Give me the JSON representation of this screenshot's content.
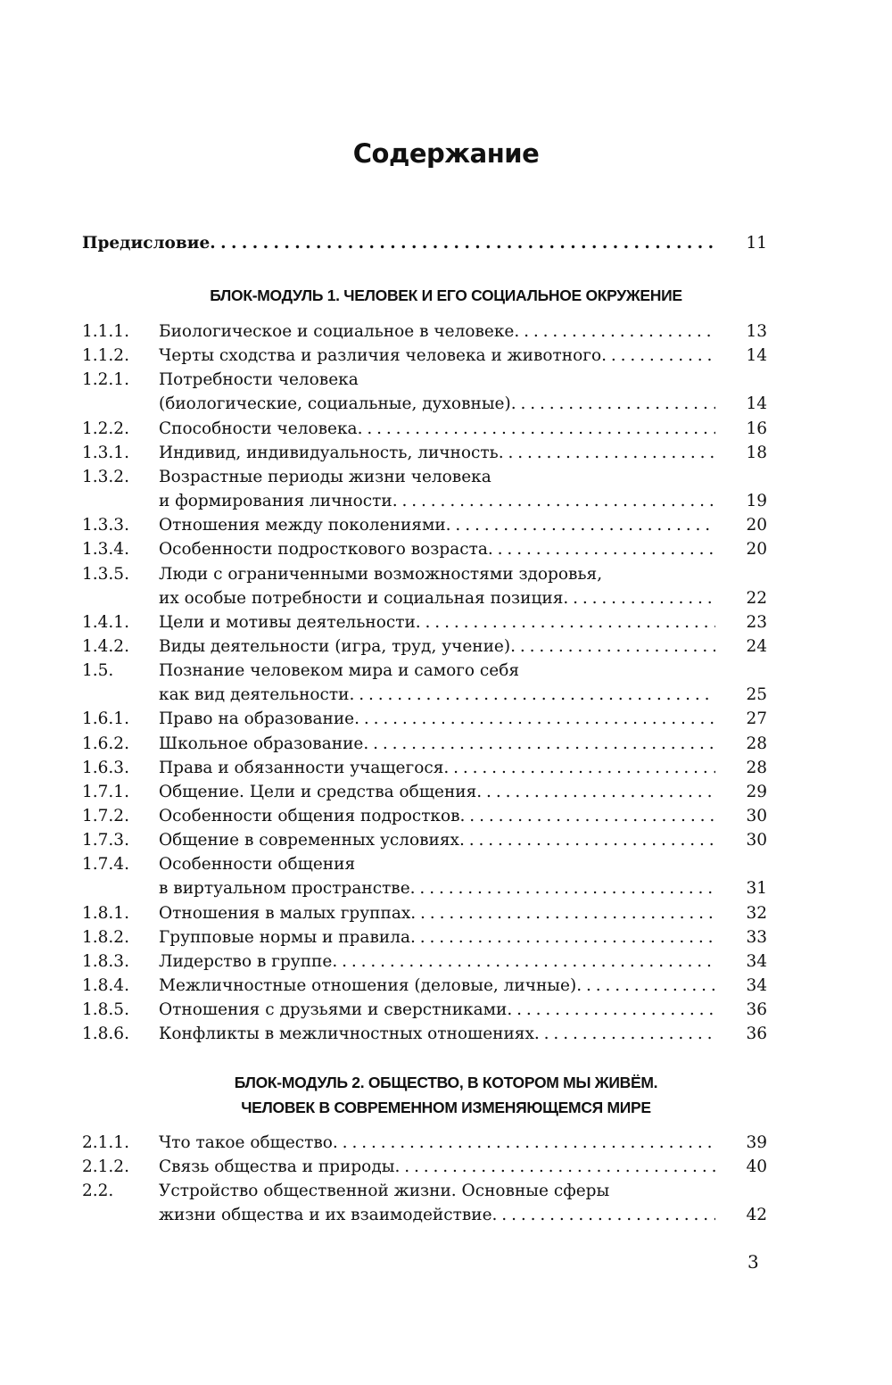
{
  "title": "Содержание",
  "preface": {
    "label": "Предисловие",
    "page": "11"
  },
  "blocks": [
    {
      "heading": [
        "БЛОК-МОДУЛЬ 1. ЧЕЛОВЕК И ЕГО СОЦИАЛЬНОЕ ОКРУЖЕНИЕ"
      ],
      "entries": [
        {
          "num": "1.1.1.",
          "lines": [
            "Биологическое и социальное в человеке"
          ],
          "page": "13"
        },
        {
          "num": "1.1.2.",
          "lines": [
            "Черты сходства и различия человека и животного"
          ],
          "page": "14"
        },
        {
          "num": "1.2.1.",
          "lines": [
            "Потребности человека",
            "(биологические, социальные, духовные)"
          ],
          "page": "14"
        },
        {
          "num": "1.2.2.",
          "lines": [
            "Способности человека"
          ],
          "page": "16"
        },
        {
          "num": "1.3.1.",
          "lines": [
            "Индивид, индивидуальность, личность"
          ],
          "page": "18"
        },
        {
          "num": "1.3.2.",
          "lines": [
            "Возрастные периоды жизни человека",
            "и формирования личности"
          ],
          "page": "19"
        },
        {
          "num": "1.3.3.",
          "lines": [
            "Отношения между поколениями"
          ],
          "page": "20"
        },
        {
          "num": "1.3.4.",
          "lines": [
            "Особенности подросткового возраста"
          ],
          "page": "20"
        },
        {
          "num": "1.3.5.",
          "lines": [
            "Люди с ограниченными возможностями здоровья,",
            "их особые потребности и социальная позиция"
          ],
          "page": "22"
        },
        {
          "num": "1.4.1.",
          "lines": [
            "Цели и мотивы деятельности"
          ],
          "page": "23"
        },
        {
          "num": "1.4.2.",
          "lines": [
            "Виды деятельности (игра, труд, учение)"
          ],
          "page": "24"
        },
        {
          "num": "1.5.",
          "lines": [
            "Познание человеком мира и самого себя",
            "как вид деятельности"
          ],
          "page": "25"
        },
        {
          "num": "1.6.1.",
          "lines": [
            "Право на образование"
          ],
          "page": "27"
        },
        {
          "num": "1.6.2.",
          "lines": [
            "Школьное образование"
          ],
          "page": "28"
        },
        {
          "num": "1.6.3.",
          "lines": [
            "Права и обязанности учащегося"
          ],
          "page": "28"
        },
        {
          "num": "1.7.1.",
          "lines": [
            "Общение. Цели и средства общения"
          ],
          "page": "29"
        },
        {
          "num": "1.7.2.",
          "lines": [
            "Особенности общения подростков"
          ],
          "page": "30"
        },
        {
          "num": "1.7.3.",
          "lines": [
            "Общение в современных условиях"
          ],
          "page": "30"
        },
        {
          "num": "1.7.4.",
          "lines": [
            "Особенности общения",
            "в виртуальном пространстве"
          ],
          "page": "31"
        },
        {
          "num": "1.8.1.",
          "lines": [
            "Отношения в малых группах"
          ],
          "page": "32"
        },
        {
          "num": "1.8.2.",
          "lines": [
            "Групповые нормы и правила"
          ],
          "page": "33"
        },
        {
          "num": "1.8.3.",
          "lines": [
            "Лидерство в группе"
          ],
          "page": "34"
        },
        {
          "num": "1.8.4.",
          "lines": [
            "Межличностные отношения (деловые, личные)"
          ],
          "page": "34"
        },
        {
          "num": "1.8.5.",
          "lines": [
            "Отношения с друзьями и сверстниками"
          ],
          "page": "36"
        },
        {
          "num": "1.8.6.",
          "lines": [
            "Конфликты в межличностных отношениях"
          ],
          "page": "36"
        }
      ]
    },
    {
      "heading": [
        "БЛОК-МОДУЛЬ 2. ОБЩЕСТВО, В КОТОРОМ МЫ ЖИВЁМ.",
        "ЧЕЛОВЕК В СОВРЕМЕННОМ ИЗМЕНЯЮЩЕМСЯ МИРЕ"
      ],
      "entries": [
        {
          "num": "2.1.1.",
          "lines": [
            "Что такое общество"
          ],
          "page": "39"
        },
        {
          "num": "2.1.2.",
          "lines": [
            "Связь общества и природы"
          ],
          "page": "40"
        },
        {
          "num": "2.2.",
          "lines": [
            "Устройство общественной жизни. Основные сферы",
            "жизни общества и их взаимодействие"
          ],
          "page": "42"
        }
      ]
    }
  ],
  "page_number": "3"
}
